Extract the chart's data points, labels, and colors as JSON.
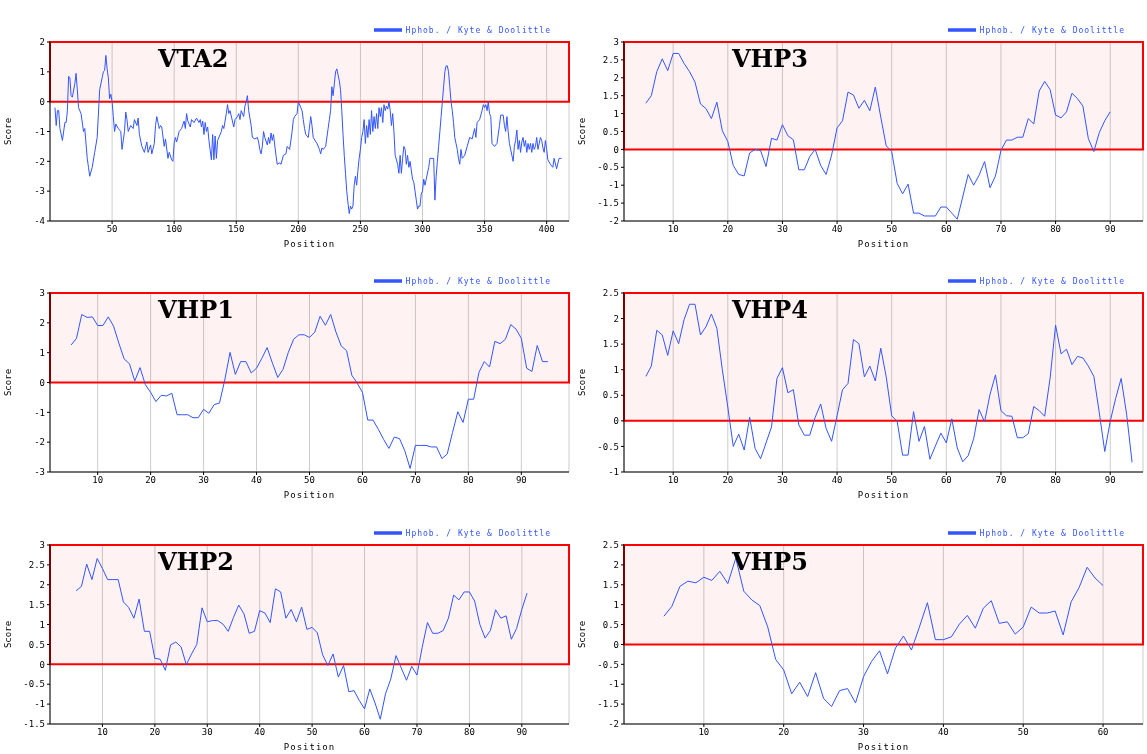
{
  "chart_data": [
    {
      "type": "line",
      "title": "VTA2",
      "xlabel": "Position",
      "ylabel": "Score",
      "xlim": [
        0,
        418
      ],
      "xticks": [
        50,
        100,
        150,
        200,
        250,
        300,
        350,
        400
      ],
      "ylim": [
        -4,
        2
      ],
      "yticks": [
        -4,
        -3,
        -2,
        -1,
        0,
        1,
        2
      ],
      "grid": true,
      "legend": "top right",
      "marker": "none",
      "line_style": "solid",
      "bands": [
        {
          "axis": "y",
          "from": 0,
          "to": 2,
          "color": "#ff0000"
        }
      ],
      "series": [
        {
          "name": "Hphob. / Kyte & Doolittle",
          "color": "#3355ff",
          "x": [
            4,
            5,
            6,
            7,
            8,
            10,
            12,
            13,
            14,
            15,
            16,
            17,
            18,
            20,
            21,
            22,
            23,
            25,
            27,
            28,
            30,
            31,
            32,
            34,
            36,
            38,
            40,
            42,
            43,
            44,
            45,
            46,
            47,
            48,
            49,
            50,
            51,
            52,
            53,
            55,
            57,
            58,
            60,
            61,
            62,
            63,
            65,
            67,
            68,
            70,
            71,
            72,
            74,
            76,
            78,
            79,
            81,
            82,
            84,
            85,
            86,
            88,
            89,
            90,
            92,
            93,
            95,
            96,
            98,
            99,
            100,
            101,
            102,
            104,
            106,
            108,
            109,
            110,
            111,
            113,
            114,
            116,
            118,
            120,
            121,
            122,
            123,
            124,
            125,
            126,
            127,
            128,
            130,
            131,
            132,
            133,
            134,
            135,
            138,
            139,
            140,
            142,
            143,
            144,
            145,
            148,
            149,
            151,
            152,
            153,
            154,
            156,
            157,
            158,
            159,
            160,
            162,
            163,
            165,
            167,
            168,
            169,
            170,
            171,
            172,
            173,
            175,
            176,
            177,
            178,
            179,
            180,
            182,
            183,
            185,
            186,
            188,
            190,
            191,
            193,
            195,
            196,
            197,
            199,
            200,
            202,
            203,
            204,
            205,
            206,
            208,
            210,
            211,
            212,
            215,
            217,
            218,
            219,
            220,
            222,
            224,
            225,
            226,
            227,
            228,
            229,
            230,
            231,
            232,
            233,
            234,
            235,
            236,
            237,
            238,
            239,
            240,
            241,
            242,
            243,
            244,
            245,
            246,
            247,
            248,
            249,
            250,
            251,
            252,
            253,
            254,
            255,
            256,
            257,
            258,
            259,
            260,
            261,
            262,
            263,
            264,
            265,
            266,
            267,
            268,
            269,
            270,
            271,
            272,
            273,
            274,
            275,
            276,
            277,
            278,
            280,
            281,
            282,
            283,
            284,
            285,
            286,
            287,
            288,
            289,
            290,
            292,
            293,
            295,
            296,
            297,
            298,
            299,
            300,
            301,
            302,
            303,
            305,
            306,
            309,
            310,
            311,
            312,
            313,
            314,
            315,
            316,
            317,
            318,
            319,
            320,
            321,
            322,
            323,
            324,
            325,
            326,
            327,
            328,
            329,
            330,
            331,
            332,
            334,
            336,
            338,
            340,
            342,
            343,
            344,
            346,
            348,
            349,
            350,
            351,
            352,
            353,
            354,
            355,
            356,
            357,
            358,
            360,
            362,
            363,
            365,
            366,
            367,
            368,
            369,
            370,
            372,
            373,
            374,
            375,
            376,
            377,
            378,
            379,
            380,
            381,
            382,
            383,
            384,
            385,
            386,
            387,
            388,
            389,
            390,
            391,
            392,
            393,
            394,
            395,
            396,
            397,
            398,
            399,
            400,
            401,
            403,
            405,
            406,
            408,
            410,
            412
          ],
          "values": [
            -0.2,
            -0.8,
            -0.3,
            -0.3,
            -0.9,
            -1.3,
            -0.7,
            -0.7,
            -0.3,
            0.85,
            0.8,
            0.2,
            0.15,
            0.6,
            0.95,
            0.4,
            -0.2,
            -0.4,
            -1.0,
            -0.9,
            -1.9,
            -2.2,
            -2.5,
            -2.2,
            -1.7,
            -1.2,
            0.4,
            0.8,
            1.0,
            1.05,
            1.55,
            1.1,
            0.8,
            0.1,
            0.25,
            0.0,
            -0.5,
            -1.0,
            -0.75,
            -0.9,
            -1.0,
            -1.6,
            -1.0,
            -0.35,
            -0.6,
            -1.0,
            -0.8,
            -0.9,
            -0.6,
            -0.8,
            -0.55,
            -1.1,
            -1.5,
            -1.7,
            -1.35,
            -1.7,
            -1.45,
            -1.75,
            -1.4,
            -0.8,
            -0.5,
            -0.9,
            -0.8,
            -0.85,
            -1.5,
            -1.25,
            -1.9,
            -1.7,
            -1.95,
            -2.0,
            -1.4,
            -1.2,
            -1.35,
            -1.0,
            -0.9,
            -0.65,
            -0.9,
            -0.4,
            -0.65,
            -0.85,
            -0.6,
            -0.7,
            -0.55,
            -0.7,
            -0.6,
            -0.85,
            -0.65,
            -1.1,
            -0.7,
            -1.0,
            -0.85,
            -1.3,
            -1.95,
            -1.1,
            -1.95,
            -1.15,
            -1.9,
            -1.3,
            -1.0,
            -0.8,
            -0.9,
            -0.4,
            -0.1,
            -0.4,
            -0.3,
            -0.85,
            -0.6,
            -0.5,
            -0.4,
            -0.6,
            -0.3,
            -0.5,
            -0.15,
            0.0,
            0.2,
            -0.3,
            -0.8,
            -1.2,
            -1.25,
            -1.2,
            -1.35,
            -1.6,
            -1.75,
            -1.5,
            -1.0,
            -1.2,
            -1.45,
            -1.2,
            -1.4,
            -1.05,
            -1.3,
            -1.1,
            -1.8,
            -2.1,
            -2.05,
            -2.1,
            -1.8,
            -1.75,
            -1.5,
            -1.6,
            -1.0,
            -0.6,
            -0.5,
            -0.4,
            0.0,
            -0.2,
            -0.3,
            -0.6,
            -0.9,
            -1.1,
            -1.2,
            -0.5,
            -0.8,
            -1.2,
            -1.4,
            -1.6,
            -1.75,
            -1.55,
            -1.6,
            -1.5,
            -0.9,
            -0.6,
            -0.3,
            0.5,
            0.2,
            0.6,
            1.0,
            1.1,
            0.9,
            0.7,
            0.4,
            -0.3,
            -1.1,
            -1.8,
            -2.4,
            -3.0,
            -3.4,
            -3.75,
            -3.5,
            -3.6,
            -3.5,
            -2.8,
            -2.5,
            -2.8,
            -2.3,
            -1.9,
            -1.6,
            -1.2,
            -1.0,
            -0.6,
            -1.4,
            -0.8,
            -1.2,
            -0.6,
            -1.1,
            -0.3,
            -1.0,
            -0.5,
            -0.9,
            -0.4,
            -0.9,
            -0.2,
            -0.5,
            -0.2,
            -0.7,
            -0.1,
            -0.3,
            -0.15,
            -0.25,
            0.0,
            -0.3,
            -0.8,
            -0.4,
            -1.0,
            -1.8,
            -2.1,
            -2.4,
            -1.8,
            -2.4,
            -1.9,
            -1.5,
            -1.6,
            -2.1,
            -1.8,
            -2.2,
            -2.0,
            -2.6,
            -2.7,
            -3.3,
            -3.6,
            -3.5,
            -3.5,
            -3.1,
            -3.0,
            -2.6,
            -2.8,
            -2.6,
            -2.2,
            -1.9,
            -1.9,
            -3.3,
            -2.5,
            -2.0,
            -1.5,
            -1.0,
            -0.5,
            0.0,
            0.5,
            1.0,
            1.2,
            1.2,
            1.0,
            0.5,
            0.0,
            -0.3,
            -0.7,
            -1.2,
            -1.4,
            -1.6,
            -1.9,
            -2.1,
            -1.6,
            -1.9,
            -1.8,
            -1.5,
            -1.2,
            -1.25,
            -0.9,
            -1.2,
            -0.7,
            -0.6,
            -0.3,
            -0.1,
            -0.2,
            -0.1,
            -0.3,
            0.0,
            -0.4,
            -0.5,
            -1.4,
            -1.45,
            -1.5,
            -1.4,
            -0.8,
            -0.45,
            -0.45,
            -0.8,
            -1.0,
            -0.5,
            -1.0,
            -1.4,
            -1.8,
            -2.0,
            -1.5,
            -1.3,
            -0.95,
            -1.6,
            -1.3,
            -1.7,
            -1.35,
            -1.2,
            -1.5,
            -1.3,
            -1.7,
            -1.4,
            -1.6,
            -1.4,
            -1.7,
            -1.4,
            -1.6,
            -1.5,
            -1.2,
            -1.6,
            -1.4,
            -1.2,
            -1.3,
            -1.55,
            -1.7,
            -1.3,
            -1.6,
            -1.95,
            -2.1,
            -2.2,
            -1.9,
            -2.25,
            -1.9,
            -1.9
          ]
        }
      ]
    },
    {
      "type": "line",
      "title": "VHP3",
      "xlabel": "Position",
      "ylabel": "Score",
      "xlim": [
        1,
        96
      ],
      "xticks": [
        10,
        20,
        30,
        40,
        50,
        60,
        70,
        80,
        90
      ],
      "ylim": [
        -2,
        3
      ],
      "yticks": [
        -2,
        -1.5,
        -1,
        -0.5,
        0,
        0.5,
        1,
        1.5,
        2,
        2.5,
        3
      ],
      "grid": true,
      "legend": "top right",
      "marker": "none",
      "line_style": "solid",
      "bands": [
        {
          "axis": "y",
          "from": 0,
          "to": 3,
          "color": "#ff0000"
        }
      ],
      "series": [
        {
          "name": "Hphob. / Kyte & Doolittle",
          "color": "#3355ff",
          "x": [
            5,
            6,
            7,
            8,
            9,
            10,
            11,
            12,
            13,
            14,
            15,
            16,
            17,
            18,
            19,
            20,
            21,
            22,
            23,
            24,
            25,
            26,
            27,
            28,
            29,
            30,
            31,
            32,
            33,
            34,
            35,
            36,
            37,
            38,
            39,
            40,
            41,
            42,
            43,
            44,
            45,
            46,
            47,
            48,
            49,
            50,
            51,
            52,
            53,
            54,
            55,
            56,
            57,
            58,
            59,
            60,
            61,
            62,
            63,
            64,
            65,
            66,
            67,
            68,
            69,
            70,
            71,
            72,
            73,
            74,
            75,
            76,
            77,
            78,
            79,
            80,
            81,
            82,
            83,
            84,
            85,
            86,
            87,
            88,
            89,
            90
          ],
          "values": [
            1.29,
            1.5,
            2.17,
            2.53,
            2.2,
            2.68,
            2.68,
            2.4,
            2.17,
            1.88,
            1.27,
            1.14,
            0.86,
            1.32,
            0.52,
            0.22,
            -0.45,
            -0.7,
            -0.74,
            -0.1,
            0,
            -0.03,
            -0.48,
            0.31,
            0.26,
            0.69,
            0.38,
            0.27,
            -0.57,
            -0.57,
            -0.2,
            0,
            -0.45,
            -0.7,
            -0.16,
            0.6,
            0.8,
            1.6,
            1.52,
            1.15,
            1.37,
            1.08,
            1.74,
            0.9,
            0.1,
            -0.06,
            -0.95,
            -1.24,
            -0.97,
            -1.78,
            -1.78,
            -1.86,
            -1.86,
            -1.86,
            -1.61,
            -1.61,
            -1.78,
            -1.95,
            -1.33,
            -0.7,
            -1.0,
            -0.72,
            -0.34,
            -1.07,
            -0.74,
            -0.03,
            0.26,
            0.26,
            0.34,
            0.34,
            0.86,
            0.71,
            1.63,
            1.9,
            1.67,
            0.96,
            0.88,
            1.05,
            1.57,
            1.42,
            1.21,
            0.3,
            -0.06,
            0.47,
            0.8,
            1.05
          ]
        }
      ]
    },
    {
      "type": "line",
      "title": "VHP1",
      "xlabel": "Position",
      "ylabel": "Score",
      "xlim": [
        1,
        99
      ],
      "xticks": [
        10,
        20,
        30,
        40,
        50,
        60,
        70,
        80,
        90
      ],
      "ylim": [
        -3,
        3
      ],
      "yticks": [
        -3,
        -2,
        -1,
        0,
        1,
        2,
        3
      ],
      "grid": true,
      "legend": "top right",
      "marker": "none",
      "line_style": "solid",
      "bands": [
        {
          "axis": "y",
          "from": 0,
          "to": 3,
          "color": "#ff0000"
        }
      ],
      "series": [
        {
          "name": "Hphob. / Kyte & Doolittle",
          "color": "#3355ff",
          "x": [
            5,
            6,
            7,
            8,
            9,
            10,
            11,
            12,
            13,
            14,
            15,
            16,
            17,
            18,
            19,
            20,
            21,
            22,
            23,
            24,
            25,
            26,
            27,
            28,
            29,
            30,
            31,
            32,
            33,
            34,
            35,
            36,
            37,
            38,
            39,
            40,
            41,
            42,
            43,
            44,
            45,
            46,
            47,
            48,
            49,
            50,
            51,
            52,
            53,
            54,
            55,
            56,
            57,
            58,
            59,
            60,
            61,
            62,
            63,
            64,
            65,
            66,
            67,
            68,
            69,
            70,
            71,
            72,
            73,
            74,
            75,
            76,
            77,
            78,
            79,
            80,
            81,
            82,
            83,
            84,
            85,
            86,
            87,
            88,
            89,
            90,
            91,
            92,
            93,
            94,
            95
          ],
          "values": [
            1.26,
            1.48,
            2.28,
            2.18,
            2.2,
            1.91,
            1.91,
            2.2,
            1.89,
            1.32,
            0.79,
            0.63,
            0.05,
            0.5,
            -0.07,
            -0.33,
            -0.64,
            -0.43,
            -0.45,
            -0.36,
            -1.08,
            -1.08,
            -1.08,
            -1.18,
            -1.18,
            -0.9,
            -1.03,
            -0.74,
            -0.69,
            0.08,
            1.01,
            0.27,
            0.7,
            0.7,
            0.32,
            0.48,
            0.81,
            1.17,
            0.65,
            0.17,
            0.44,
            1.01,
            1.45,
            1.6,
            1.6,
            1.51,
            1.69,
            2.22,
            1.92,
            2.28,
            1.69,
            1.22,
            1.07,
            0.24,
            -0.02,
            -0.33,
            -1.26,
            -1.26,
            -1.57,
            -1.91,
            -2.21,
            -1.83,
            -1.88,
            -2.29,
            -2.88,
            -2.11,
            -2.11,
            -2.11,
            -2.16,
            -2.16,
            -2.55,
            -2.4,
            -1.68,
            -0.98,
            -1.34,
            -0.56,
            -0.56,
            0.34,
            0.7,
            0.52,
            1.38,
            1.3,
            1.45,
            1.94,
            1.79,
            1.48,
            0.48,
            0.37,
            1.24,
            0.7,
            0.7
          ]
        }
      ]
    },
    {
      "type": "line",
      "title": "VHP4",
      "xlabel": "Position",
      "ylabel": "Score",
      "xlim": [
        1,
        96
      ],
      "xticks": [
        10,
        20,
        30,
        40,
        50,
        60,
        70,
        80,
        90
      ],
      "ylim": [
        -1,
        2.5
      ],
      "yticks": [
        -1,
        -0.5,
        0,
        0.5,
        1,
        1.5,
        2,
        2.5
      ],
      "grid": true,
      "legend": "top right",
      "marker": "none",
      "line_style": "solid",
      "bands": [
        {
          "axis": "y",
          "from": 0,
          "to": 2.5,
          "color": "#ff0000"
        }
      ],
      "series": [
        {
          "name": "Hphob. / Kyte & Doolittle",
          "color": "#3355ff",
          "x": [
            5,
            6,
            7,
            8,
            9,
            10,
            11,
            12,
            13,
            14,
            15,
            16,
            17,
            18,
            19,
            20,
            21,
            22,
            23,
            24,
            25,
            26,
            27,
            28,
            29,
            30,
            31,
            32,
            33,
            34,
            35,
            36,
            37,
            38,
            39,
            40,
            41,
            42,
            43,
            44,
            45,
            46,
            47,
            48,
            49,
            50,
            51,
            52,
            53,
            54,
            55,
            56,
            57,
            58,
            59,
            60,
            61,
            62,
            63,
            64,
            65,
            66,
            67,
            68,
            69,
            70,
            71,
            72,
            73,
            74,
            75,
            76,
            77,
            78,
            79,
            80,
            81,
            82,
            83,
            84,
            85,
            86,
            87,
            88,
            89,
            90,
            91,
            92,
            93,
            94
          ],
          "values": [
            0.87,
            1.07,
            1.77,
            1.68,
            1.28,
            1.76,
            1.51,
            1.98,
            2.28,
            2.28,
            1.68,
            1.84,
            2.09,
            1.81,
            1.0,
            0.27,
            -0.5,
            -0.26,
            -0.57,
            0.07,
            -0.54,
            -0.74,
            -0.43,
            -0.12,
            0.83,
            1.04,
            0.55,
            0.61,
            -0.08,
            -0.28,
            -0.28,
            0.07,
            0.33,
            -0.15,
            -0.4,
            0.1,
            0.61,
            0.73,
            1.59,
            1.51,
            0.86,
            1.07,
            0.78,
            1.42,
            0.86,
            0.1,
            -0.01,
            -0.67,
            -0.67,
            0.18,
            -0.4,
            -0.11,
            -0.75,
            -0.49,
            -0.24,
            -0.43,
            0.04,
            -0.53,
            -0.8,
            -0.68,
            -0.35,
            0.22,
            -0.02,
            0.52,
            0.9,
            0.2,
            0.1,
            0.09,
            -0.33,
            -0.33,
            -0.25,
            0.28,
            0.2,
            0.09,
            0.84,
            1.87,
            1.31,
            1.4,
            1.1,
            1.26,
            1.23,
            1.07,
            0.87,
            0.16,
            -0.6,
            -0.01,
            0.44,
            0.83,
            0.13,
            -0.81
          ]
        }
      ]
    },
    {
      "type": "line",
      "title": "VHP2",
      "xlabel": "Position",
      "ylabel": "Score",
      "xlim": [
        0,
        99
      ],
      "xticks": [
        10,
        20,
        30,
        40,
        50,
        60,
        70,
        80,
        90
      ],
      "ylim": [
        -1.5,
        3
      ],
      "yticks": [
        -1.5,
        -1,
        -0.5,
        0,
        0.5,
        1,
        1.5,
        2,
        2.5,
        3
      ],
      "grid": true,
      "legend": "top right",
      "marker": "none",
      "line_style": "solid",
      "bands": [
        {
          "axis": "y",
          "from": 0,
          "to": 3,
          "color": "#ff0000"
        }
      ],
      "series": [
        {
          "name": "Hphob. / Kyte & Doolittle",
          "color": "#3355ff",
          "x": [
            5,
            6,
            7,
            8,
            9,
            10,
            11,
            12,
            13,
            14,
            15,
            16,
            17,
            18,
            19,
            20,
            21,
            22,
            23,
            24,
            25,
            26,
            27,
            28,
            29,
            30,
            31,
            32,
            33,
            34,
            35,
            36,
            37,
            38,
            39,
            40,
            41,
            42,
            43,
            44,
            45,
            46,
            47,
            48,
            49,
            50,
            51,
            52,
            53,
            54,
            55,
            56,
            57,
            58,
            59,
            60,
            61,
            62,
            63,
            64,
            65,
            66,
            67,
            68,
            69,
            70,
            71,
            72,
            73,
            74,
            75,
            76,
            77,
            78,
            79,
            80,
            81,
            82,
            83,
            84,
            85,
            86,
            87,
            88,
            89,
            90,
            91
          ],
          "values": [
            1.85,
            1.96,
            2.52,
            2.13,
            2.66,
            2.41,
            2.13,
            2.13,
            2.13,
            1.57,
            1.43,
            1.16,
            1.64,
            0.83,
            0.83,
            0.15,
            0.13,
            -0.15,
            0.49,
            0.56,
            0.44,
            -0.01,
            0.26,
            0.5,
            1.42,
            1.07,
            1.1,
            1.1,
            1.01,
            0.83,
            1.18,
            1.49,
            1.27,
            0.78,
            0.83,
            1.35,
            1.29,
            1.05,
            1.9,
            1.82,
            1.16,
            1.38,
            1.07,
            1.44,
            0.88,
            0.93,
            0.79,
            0.24,
            -0.03,
            0.26,
            -0.32,
            -0.03,
            -0.69,
            -0.66,
            -0.91,
            -1.12,
            -0.62,
            -0.97,
            -1.38,
            -0.74,
            -0.37,
            0.22,
            -0.09,
            -0.4,
            -0.05,
            -0.27,
            0.43,
            1.05,
            0.78,
            0.78,
            0.85,
            1.16,
            1.74,
            1.62,
            1.82,
            1.82,
            1.59,
            1.0,
            0.66,
            0.85,
            1.37,
            1.16,
            1.22,
            0.63,
            0.9,
            1.38,
            1.79
          ]
        }
      ]
    },
    {
      "type": "line",
      "title": "VHP5",
      "xlabel": "Position",
      "ylabel": "Score",
      "xlim": [
        0,
        65
      ],
      "xticks": [
        10,
        20,
        30,
        40,
        50,
        60
      ],
      "ylim": [
        -2,
        2.5
      ],
      "yticks": [
        -2,
        -1.5,
        -1,
        -0.5,
        0,
        0.5,
        1,
        1.5,
        2,
        2.5
      ],
      "grid": true,
      "legend": "top right",
      "marker": "none",
      "line_style": "solid",
      "bands": [
        {
          "axis": "y",
          "from": 0,
          "to": 2.5,
          "color": "#ff0000"
        }
      ],
      "series": [
        {
          "name": "Hphob. / Kyte & Doolittle",
          "color": "#3355ff",
          "x": [
            5,
            6,
            7,
            8,
            9,
            10,
            11,
            12,
            13,
            14,
            15,
            16,
            17,
            18,
            19,
            20,
            21,
            22,
            23,
            24,
            25,
            26,
            27,
            28,
            29,
            30,
            31,
            32,
            33,
            34,
            35,
            36,
            37,
            38,
            39,
            40,
            41,
            42,
            43,
            44,
            45,
            46,
            47,
            48,
            49,
            50,
            51,
            52,
            53,
            54,
            55,
            56,
            57,
            58,
            59,
            60
          ],
          "values": [
            0.71,
            0.96,
            1.46,
            1.59,
            1.55,
            1.69,
            1.61,
            1.84,
            1.53,
            2.17,
            1.34,
            1.12,
            0.98,
            0.44,
            -0.38,
            -0.64,
            -1.24,
            -0.95,
            -1.31,
            -0.71,
            -1.36,
            -1.56,
            -1.16,
            -1.11,
            -1.47,
            -0.81,
            -0.43,
            -0.16,
            -0.74,
            -0.09,
            0.21,
            -0.14,
            0.44,
            1.05,
            0.12,
            0.12,
            0.19,
            0.51,
            0.73,
            0.41,
            0.91,
            1.1,
            0.53,
            0.57,
            0.26,
            0.44,
            0.94,
            0.79,
            0.79,
            0.84,
            0.24,
            1.07,
            1.43,
            1.94,
            1.67,
            1.48
          ]
        }
      ]
    }
  ]
}
